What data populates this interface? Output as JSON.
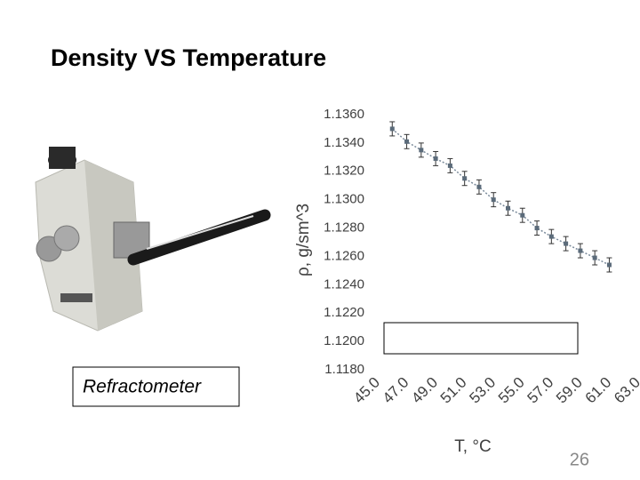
{
  "title": "Density VS Temperature",
  "image_caption": "Refractometer",
  "page_number": "26",
  "chart_data": {
    "type": "scatter",
    "x_label": "T, °C",
    "y_label": "ρ, g/sm^3",
    "x": [
      46,
      47,
      48,
      49,
      50,
      51,
      52,
      53,
      54,
      55,
      56,
      57,
      58,
      59,
      60,
      61
    ],
    "values": [
      1.135,
      1.1341,
      1.1335,
      1.1329,
      1.1324,
      1.1315,
      1.1309,
      1.13,
      1.1294,
      1.1289,
      1.128,
      1.1274,
      1.1269,
      1.1264,
      1.1259,
      1.1254
    ],
    "errors": [
      0.0005,
      0.0005,
      0.0005,
      0.0005,
      0.0005,
      0.0005,
      0.0005,
      0.0005,
      0.0005,
      0.0005,
      0.0005,
      0.0005,
      0.0005,
      0.0005,
      0.0005,
      0.0005
    ],
    "color": "#5b6b7a",
    "xlim": [
      45,
      63
    ],
    "xticks": [
      {
        "value": 45,
        "label": "45.0"
      },
      {
        "value": 47,
        "label": "47.0"
      },
      {
        "value": 49,
        "label": "49.0"
      },
      {
        "value": 51,
        "label": "51.0"
      },
      {
        "value": 53,
        "label": "53.0"
      },
      {
        "value": 55,
        "label": "55.0"
      },
      {
        "value": 57,
        "label": "57.0"
      },
      {
        "value": 59,
        "label": "59.0"
      },
      {
        "value": 61,
        "label": "61.0"
      },
      {
        "value": 63,
        "label": "63.0"
      }
    ],
    "ylim": [
      1.118,
      1.136
    ],
    "yticks": [
      {
        "value": 1.118,
        "label": "1.1180"
      },
      {
        "value": 1.12,
        "label": "1.1200"
      },
      {
        "value": 1.122,
        "label": "1.1220"
      },
      {
        "value": 1.124,
        "label": "1.1240"
      },
      {
        "value": 1.126,
        "label": "1.1260"
      },
      {
        "value": 1.128,
        "label": "1.1280"
      },
      {
        "value": 1.13,
        "label": "1.1300"
      },
      {
        "value": 1.132,
        "label": "1.1320"
      },
      {
        "value": 1.134,
        "label": "1.1340"
      },
      {
        "value": 1.136,
        "label": "1.1360"
      }
    ]
  }
}
